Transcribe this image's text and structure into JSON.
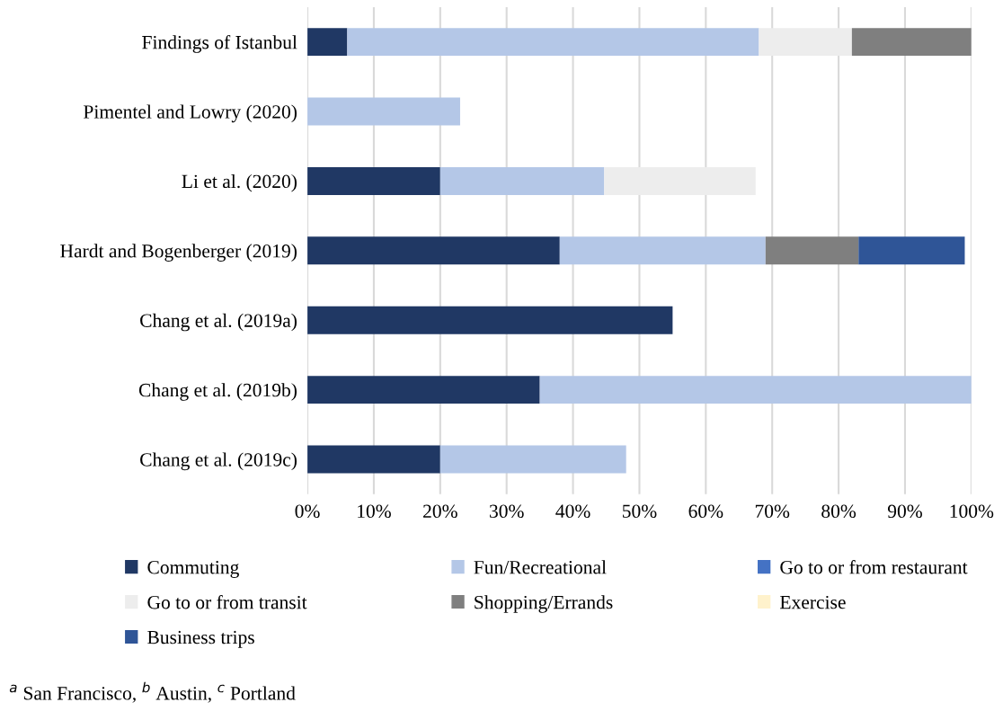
{
  "chart_data": {
    "type": "bar",
    "orientation": "horizontal",
    "stacked": true,
    "categories": [
      "Findings of Istanbul",
      "Pimentel and Lowry (2020)",
      "Li et al. (2020)",
      "Hardt and Bogenberger (2019)",
      "Chang et al. (2019a)",
      "Chang et al. (2019b)",
      "Chang et al. (2019c)"
    ],
    "series": [
      {
        "name": "Commuting",
        "color": "#203864",
        "values": [
          6,
          null,
          20,
          38,
          55,
          35,
          20
        ]
      },
      {
        "name": "Fun/Recreational",
        "color": "#b4c7e7",
        "values": [
          62,
          23,
          24.7,
          31,
          null,
          65,
          28
        ]
      },
      {
        "name": "Go to or from restaurant",
        "color": "#4472c4",
        "values": [
          null,
          null,
          null,
          null,
          null,
          null,
          null
        ]
      },
      {
        "name": "Go to or from transit",
        "color": "#ededed",
        "values": [
          14,
          null,
          22.8,
          null,
          null,
          null,
          null
        ]
      },
      {
        "name": "Shopping/Errands",
        "color": "#7f7f7f",
        "values": [
          18,
          null,
          null,
          14,
          null,
          null,
          null
        ]
      },
      {
        "name": "Exercise",
        "color": "#fff2cc",
        "values": [
          null,
          null,
          null,
          null,
          null,
          null,
          null
        ]
      },
      {
        "name": "Business trips",
        "color": "#2f5597",
        "values": [
          null,
          null,
          null,
          16,
          null,
          null,
          null
        ]
      }
    ],
    "xlim": [
      0,
      100
    ],
    "xticks": [
      {
        "value": 0,
        "label": "0%"
      },
      {
        "value": 10,
        "label": "10%"
      },
      {
        "value": 20,
        "label": "20%"
      },
      {
        "value": 30,
        "label": "30%"
      },
      {
        "value": 40,
        "label": "40%"
      },
      {
        "value": 50,
        "label": "50%"
      },
      {
        "value": 60,
        "label": "60%"
      },
      {
        "value": 70,
        "label": "70%"
      },
      {
        "value": 80,
        "label": "80%"
      },
      {
        "value": 90,
        "label": "90%"
      },
      {
        "value": 100,
        "label": "100%"
      }
    ],
    "grid": "x",
    "legend": "bottom",
    "annotations": [
      "$^{a}$ San Francisco, $^{b}$ Austin, $^{c}$ Portland"
    ]
  }
}
